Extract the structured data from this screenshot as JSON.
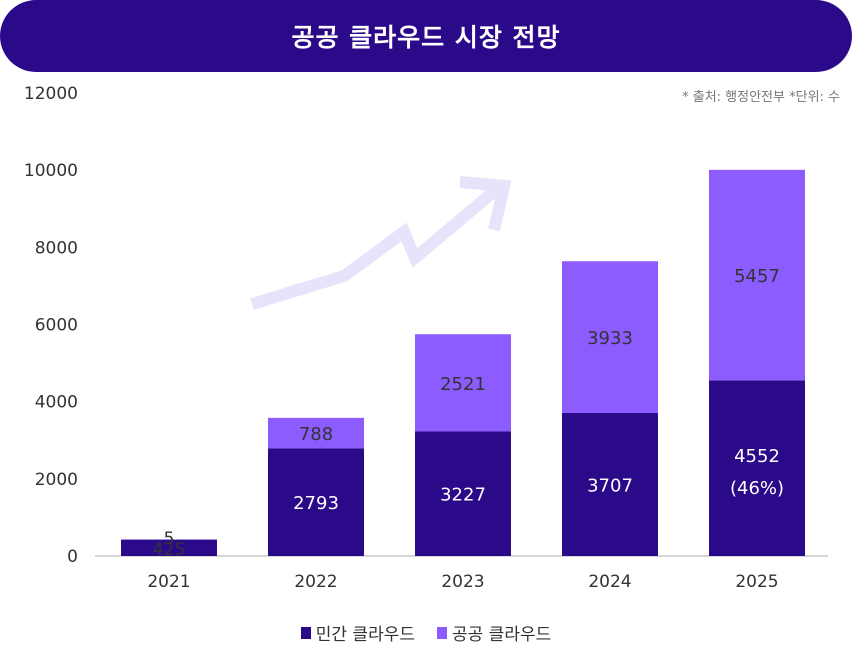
{
  "title": "공공 클라우드 시장 전망",
  "source_note": "* 출처: 행정안전부 *단위: 수",
  "colors": {
    "title_bg": "#2b0a8a",
    "private": "#2b0a8a",
    "public": "#8c5cff",
    "arrow": "#e6e4fb"
  },
  "chart_data": {
    "type": "bar",
    "stacked": true,
    "categories": [
      "2021",
      "2022",
      "2023",
      "2024",
      "2025"
    ],
    "series": [
      {
        "name": "민간 클라우드",
        "values": [
          425,
          2793,
          3227,
          3707,
          4552
        ]
      },
      {
        "name": "공공 클라우드",
        "values": [
          5,
          788,
          2521,
          3933,
          5457
        ]
      }
    ],
    "yticks": [
      "0",
      "2000",
      "4000",
      "6000",
      "8000",
      "10000",
      "12000"
    ],
    "ylim": [
      0,
      12000
    ],
    "annotations": {
      "private_2025_share": "(46%)"
    },
    "legend_position": "bottom"
  }
}
